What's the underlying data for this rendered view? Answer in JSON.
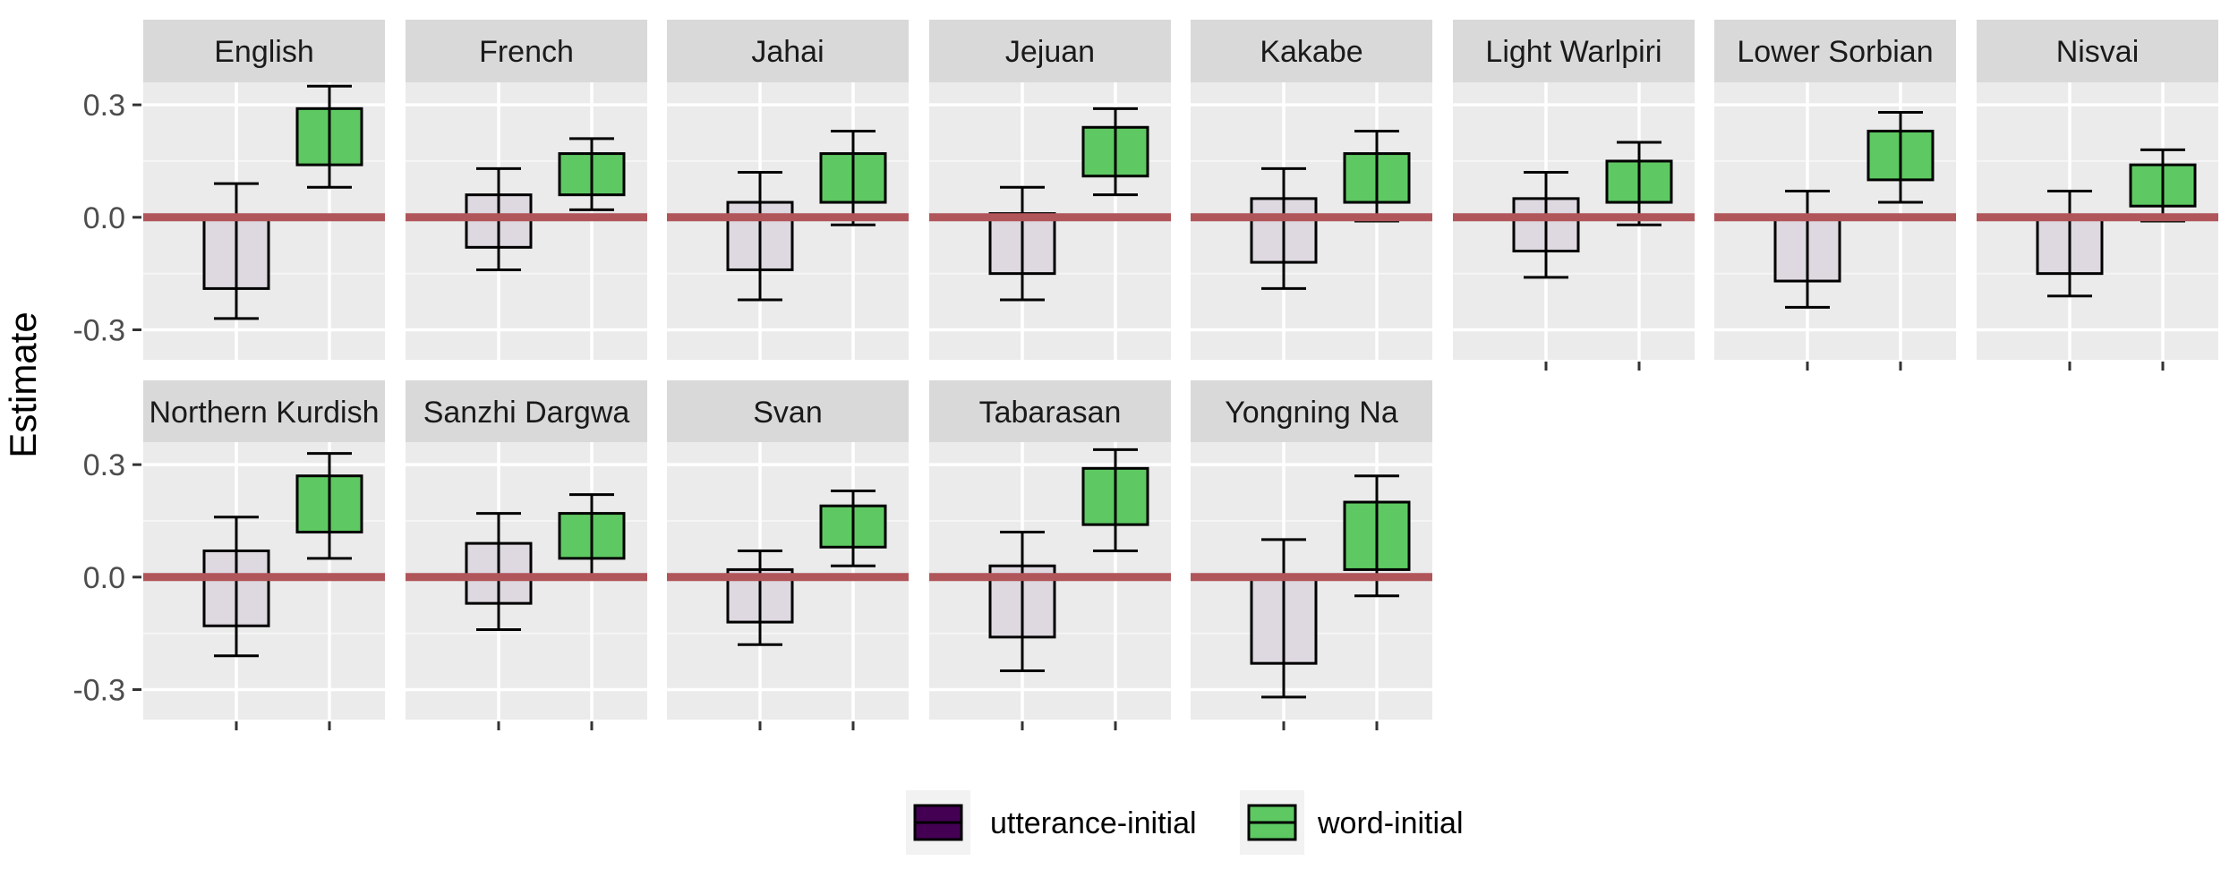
{
  "chart_data": {
    "type": "bar",
    "ylabel": "Estimate",
    "ylim": [
      -0.38,
      0.36
    ],
    "yticks": [
      -0.3,
      0.0,
      0.3
    ],
    "ytick_labels": [
      "-0.3",
      "0.0",
      "0.3"
    ],
    "reference_line": {
      "y": 0.0,
      "color": "#b0565a"
    },
    "categories": [
      "utterance-initial",
      "word-initial"
    ],
    "colors": {
      "utterance-initial": "#ded8e0",
      "word-initial": "#5ec962",
      "legend_utterance_fill": "#440154",
      "panel_bg": "#ebebeb",
      "strip_bg": "#d9d9d9"
    },
    "legend": {
      "position": "bottom",
      "entries": [
        {
          "label": "utterance-initial",
          "color": "#440154"
        },
        {
          "label": "word-initial",
          "color": "#5ec962"
        }
      ]
    },
    "panels": [
      {
        "name": "English",
        "bars": [
          {
            "category": "utterance-initial",
            "value": -0.19,
            "lo": -0.27,
            "hi": 0.09
          },
          {
            "category": "word-initial",
            "value": 0.29,
            "lo": 0.08,
            "hi": 0.35,
            "base": 0.14
          }
        ]
      },
      {
        "name": "French",
        "bars": [
          {
            "category": "utterance-initial",
            "value": -0.08,
            "lo": -0.14,
            "hi": 0.13,
            "top": 0.06
          },
          {
            "category": "word-initial",
            "value": 0.17,
            "lo": 0.02,
            "hi": 0.21,
            "base": 0.06
          }
        ]
      },
      {
        "name": "Jahai",
        "bars": [
          {
            "category": "utterance-initial",
            "value": -0.14,
            "lo": -0.22,
            "hi": 0.12,
            "top": 0.04
          },
          {
            "category": "word-initial",
            "value": 0.17,
            "lo": -0.02,
            "hi": 0.23,
            "base": 0.04
          }
        ]
      },
      {
        "name": "Jejuan",
        "bars": [
          {
            "category": "utterance-initial",
            "value": -0.15,
            "lo": -0.22,
            "hi": 0.08,
            "top": 0.01
          },
          {
            "category": "word-initial",
            "value": 0.24,
            "lo": 0.06,
            "hi": 0.29,
            "base": 0.11
          }
        ]
      },
      {
        "name": "Kakabe",
        "bars": [
          {
            "category": "utterance-initial",
            "value": -0.12,
            "lo": -0.19,
            "hi": 0.13,
            "top": 0.05
          },
          {
            "category": "word-initial",
            "value": 0.17,
            "lo": -0.01,
            "hi": 0.23,
            "base": 0.04
          }
        ]
      },
      {
        "name": "Light Warlpiri",
        "bars": [
          {
            "category": "utterance-initial",
            "value": -0.09,
            "lo": -0.16,
            "hi": 0.12,
            "top": 0.05
          },
          {
            "category": "word-initial",
            "value": 0.15,
            "lo": -0.02,
            "hi": 0.2,
            "base": 0.04
          }
        ]
      },
      {
        "name": "Lower Sorbian",
        "bars": [
          {
            "category": "utterance-initial",
            "value": -0.17,
            "lo": -0.24,
            "hi": 0.07,
            "top": 0.0
          },
          {
            "category": "word-initial",
            "value": 0.23,
            "lo": 0.04,
            "hi": 0.28,
            "base": 0.1
          }
        ]
      },
      {
        "name": "Nisvai",
        "bars": [
          {
            "category": "utterance-initial",
            "value": -0.15,
            "lo": -0.21,
            "hi": 0.07,
            "top": 0.0
          },
          {
            "category": "word-initial",
            "value": 0.14,
            "lo": -0.01,
            "hi": 0.18,
            "base": 0.03
          }
        ]
      },
      {
        "name": "Northern Kurdish",
        "bars": [
          {
            "category": "utterance-initial",
            "value": -0.13,
            "lo": -0.21,
            "hi": 0.16,
            "top": 0.07
          },
          {
            "category": "word-initial",
            "value": 0.27,
            "lo": 0.05,
            "hi": 0.33,
            "base": 0.12
          }
        ]
      },
      {
        "name": "Sanzhi Dargwa",
        "bars": [
          {
            "category": "utterance-initial",
            "value": -0.07,
            "lo": -0.14,
            "hi": 0.17,
            "top": 0.09
          },
          {
            "category": "word-initial",
            "value": 0.17,
            "lo": 0.0,
            "hi": 0.22,
            "base": 0.05
          }
        ]
      },
      {
        "name": "Svan",
        "bars": [
          {
            "category": "utterance-initial",
            "value": -0.12,
            "lo": -0.18,
            "hi": 0.07,
            "top": 0.02
          },
          {
            "category": "word-initial",
            "value": 0.19,
            "lo": 0.03,
            "hi": 0.23,
            "base": 0.08
          }
        ]
      },
      {
        "name": "Tabarasan",
        "bars": [
          {
            "category": "utterance-initial",
            "value": -0.16,
            "lo": -0.25,
            "hi": 0.12,
            "top": 0.03
          },
          {
            "category": "word-initial",
            "value": 0.29,
            "lo": 0.07,
            "hi": 0.34,
            "base": 0.14
          }
        ]
      },
      {
        "name": "Yongning Na",
        "bars": [
          {
            "category": "utterance-initial",
            "value": -0.23,
            "lo": -0.32,
            "hi": 0.1,
            "top": 0.0
          },
          {
            "category": "word-initial",
            "value": 0.2,
            "lo": -0.05,
            "hi": 0.27,
            "base": 0.02
          }
        ]
      }
    ]
  }
}
